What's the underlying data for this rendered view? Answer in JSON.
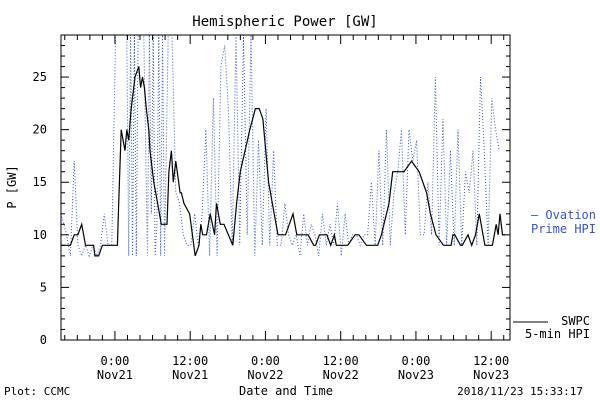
{
  "chart_data": {
    "type": "line",
    "title": "Hemispheric Power [GW]",
    "xlabel": "Date and Time",
    "ylabel": "P [GW]",
    "ylim": [
      0,
      29
    ],
    "yticks": [
      0,
      5,
      10,
      15,
      20,
      25
    ],
    "xticks": [
      {
        "hours": 0,
        "time": "0:00",
        "date": "Nov21"
      },
      {
        "hours": 12,
        "time": "12:00",
        "date": "Nov21"
      },
      {
        "hours": 24,
        "time": "0:00",
        "date": "Nov22"
      },
      {
        "hours": 36,
        "time": "12:00",
        "date": "Nov22"
      },
      {
        "hours": 48,
        "time": "0:00",
        "date": "Nov23"
      },
      {
        "hours": 60,
        "time": "12:00",
        "date": "Nov23"
      }
    ],
    "xlim_hours": [
      -8.6,
      63.0
    ],
    "grid": false,
    "series": [
      {
        "name": "SWPC 5-min HPI",
        "legend_lines": [
          "SWPC",
          "5-min HPI"
        ],
        "color": "#000000",
        "style": "solid",
        "x": [
          -8.6,
          -7.1,
          -6.5,
          -5.9,
          -5.3,
          -4.7,
          -4.1,
          -3.4,
          -3.2,
          -2.6,
          -2.0,
          -1.4,
          -0.8,
          -0.6,
          0.4,
          0.6,
          1.0,
          1.6,
          1.9,
          2.2,
          2.6,
          3.2,
          3.8,
          4.1,
          4.4,
          4.7,
          5.0,
          5.4,
          5.6,
          6.2,
          6.8,
          7.4,
          8.3,
          8.6,
          9.0,
          9.3,
          9.7,
          10.4,
          10.6,
          11.0,
          11.9,
          12.8,
          13.4,
          13.7,
          14.0,
          14.6,
          15.2,
          15.9,
          16.2,
          16.8,
          17.4,
          18.8,
          19.4,
          20.0,
          21.5,
          22.4,
          23.0,
          23.6,
          23.9,
          24.5,
          25.4,
          26.0,
          27.2,
          27.8,
          28.4,
          29.0,
          30.8,
          31.7,
          32.0,
          32.6,
          33.8,
          34.4,
          35.0,
          35.3,
          35.6,
          37.1,
          38.3,
          38.9,
          40.1,
          41.3,
          41.9,
          42.5,
          43.7,
          44.3,
          46.1,
          47.3,
          48.5,
          49.7,
          50.3,
          51.2,
          52.4,
          53.0,
          53.6,
          53.9,
          54.2,
          55.1,
          55.4,
          56.3,
          56.9,
          57.5,
          58.1,
          58.7,
          59.0,
          59.6,
          60.2,
          60.8,
          61.1,
          61.4,
          61.8,
          62.3
        ],
        "y": [
          9,
          9,
          10,
          10,
          11,
          9,
          9,
          9,
          8,
          8,
          9,
          9,
          9,
          9,
          9,
          13,
          20,
          18,
          20,
          19,
          22,
          25,
          26,
          24,
          25,
          24,
          22,
          20,
          18,
          15,
          13,
          11,
          11,
          16,
          18,
          15,
          17,
          14,
          14,
          13,
          12,
          8,
          9,
          11,
          10,
          10,
          12,
          10,
          13,
          11,
          11,
          9,
          13,
          16,
          20,
          22,
          22,
          21,
          19,
          15,
          12,
          10,
          10,
          11,
          12,
          10,
          10,
          9,
          9,
          10,
          10,
          9,
          10,
          9,
          9,
          9,
          10,
          10,
          9,
          9,
          9,
          10,
          13,
          16,
          16,
          17,
          16,
          14,
          12,
          10,
          9,
          9,
          9,
          10,
          10,
          9,
          9,
          10,
          9,
          10,
          12,
          10,
          9,
          9,
          9,
          11,
          10,
          12,
          10,
          10
        ]
      },
      {
        "name": "Ovation Prime HPI",
        "legend_lines": [
          "— Ovation",
          "Prime HPI"
        ],
        "color": "#3355cc",
        "style": "dotted",
        "x": [
          -8.6,
          -7.7,
          -7.1,
          -6.5,
          -5.9,
          -5.3,
          -4.7,
          -4.1,
          -3.5,
          -2.9,
          -2.3,
          -1.7,
          -1.1,
          -0.5,
          0.1,
          0.7,
          1.3,
          1.6,
          1.9,
          2.2,
          2.5,
          2.8,
          3.1,
          3.4,
          3.7,
          4.0,
          4.3,
          4.6,
          4.9,
          5.2,
          5.5,
          5.8,
          6.1,
          6.4,
          6.7,
          7.0,
          7.3,
          7.6,
          7.9,
          8.5,
          9.1,
          9.7,
          10.3,
          10.9,
          11.5,
          12.1,
          12.7,
          13.3,
          13.9,
          14.5,
          15.1,
          15.7,
          16.3,
          16.9,
          17.5,
          18.1,
          18.7,
          19.3,
          19.9,
          20.5,
          21.1,
          21.7,
          22.3,
          22.9,
          23.5,
          24.1,
          24.7,
          25.3,
          25.9,
          26.5,
          27.1,
          27.7,
          28.3,
          28.9,
          29.5,
          30.1,
          30.7,
          31.3,
          31.9,
          32.5,
          33.1,
          33.7,
          34.3,
          34.9,
          35.5,
          36.1,
          36.7,
          37.3,
          37.9,
          38.5,
          39.1,
          39.7,
          40.3,
          40.9,
          41.5,
          42.1,
          42.7,
          43.3,
          43.9,
          44.5,
          45.1,
          45.7,
          46.3,
          46.9,
          47.5,
          48.1,
          48.7,
          49.3,
          49.9,
          50.5,
          51.1,
          51.7,
          52.3,
          52.9,
          53.5,
          54.1,
          54.7,
          55.3,
          55.9,
          56.5,
          57.1,
          57.7,
          58.3,
          58.9,
          59.5,
          60.1,
          60.7,
          61.3
        ],
        "y": [
          12,
          10,
          8,
          17,
          9,
          8,
          9,
          8,
          9,
          8,
          9,
          12,
          9,
          9,
          29,
          29,
          29,
          29,
          29,
          8,
          29,
          8,
          29,
          8,
          29,
          29,
          29,
          29,
          18,
          8,
          29,
          12,
          29,
          8,
          11,
          29,
          8,
          29,
          8,
          29,
          29,
          14,
          13,
          10,
          9,
          9,
          12,
          9,
          12,
          20,
          8,
          23,
          8,
          26,
          28,
          22,
          9,
          29,
          9,
          29,
          10,
          29,
          8,
          19,
          9,
          22,
          9,
          18,
          9,
          9,
          13,
          10,
          9,
          10,
          8,
          12,
          9,
          11,
          10,
          8,
          12,
          9,
          11,
          9,
          13,
          8,
          12,
          9,
          10,
          10,
          9,
          10,
          10,
          15,
          9,
          18,
          9,
          20,
          9,
          14,
          16,
          20,
          10,
          20,
          17,
          19,
          10,
          10,
          15,
          10,
          25,
          9,
          21,
          9,
          18,
          9,
          20,
          9,
          16,
          14,
          18,
          9,
          25,
          18,
          9,
          23,
          20,
          18
        ]
      }
    ]
  },
  "footer": {
    "left": "Plot: CCMC",
    "right": "2018/11/23 15:33:17"
  }
}
